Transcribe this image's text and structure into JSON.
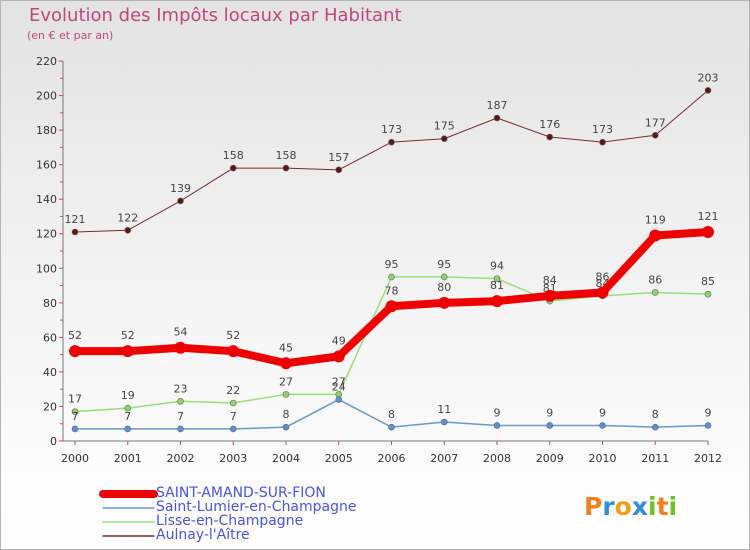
{
  "header": {
    "title": "Evolution des Impôts locaux par Habitant",
    "subtitle": "(en € et par an)"
  },
  "logo": {
    "text": "Proxiti",
    "letters": [
      "P",
      "r",
      "o",
      "x",
      "i",
      "t",
      "i"
    ],
    "colors": [
      "#f08020",
      "#2f8fd8",
      "#f0a020",
      "#2f8fd8",
      "#70c020",
      "#f08020",
      "#70c020"
    ]
  },
  "chart_data": {
    "type": "line",
    "title": "Evolution des Impôts locaux par Habitant",
    "subtitle": "(en € et par an)",
    "xlabel": "",
    "ylabel": "",
    "ylim": [
      0,
      220
    ],
    "yticks": [
      0,
      20,
      40,
      60,
      80,
      100,
      120,
      140,
      160,
      180,
      200,
      220
    ],
    "categories": [
      "2000",
      "2001",
      "2002",
      "2003",
      "2004",
      "2005",
      "2006",
      "2007",
      "2008",
      "2009",
      "2010",
      "2011",
      "2012"
    ],
    "series": [
      {
        "name": "Aulnay-l'Aître",
        "color": "#7a2a2a",
        "marker": "#5a1818",
        "width": 1,
        "values": [
          121,
          122,
          139,
          158,
          158,
          157,
          173,
          175,
          187,
          176,
          173,
          177,
          203
        ]
      },
      {
        "name": "Lisse-en-Champagne",
        "color": "#9ade7a",
        "marker": "#8ed46a",
        "width": 1.5,
        "values": [
          17,
          19,
          23,
          22,
          27,
          27,
          95,
          95,
          94,
          81,
          84,
          86,
          85
        ]
      },
      {
        "name": "Saint-Lumier-en-Champagne",
        "color": "#6a98c8",
        "marker": "#5a90d8",
        "width": 1.5,
        "values": [
          7,
          7,
          7,
          7,
          8,
          24,
          8,
          11,
          9,
          9,
          9,
          8,
          9
        ]
      },
      {
        "name": "SAINT-AMAND-SUR-FION",
        "color": "#ee0000",
        "marker": "#ee0000",
        "width": 8,
        "values": [
          52,
          52,
          54,
          52,
          45,
          49,
          78,
          80,
          81,
          84,
          86,
          119,
          121
        ]
      }
    ],
    "legend": {
      "placement": "bottom-left",
      "order": [
        "SAINT-AMAND-SUR-FION",
        "Saint-Lumier-en-Champagne",
        "Lisse-en-Champagne",
        "Aulnay-l'Aître"
      ]
    }
  }
}
